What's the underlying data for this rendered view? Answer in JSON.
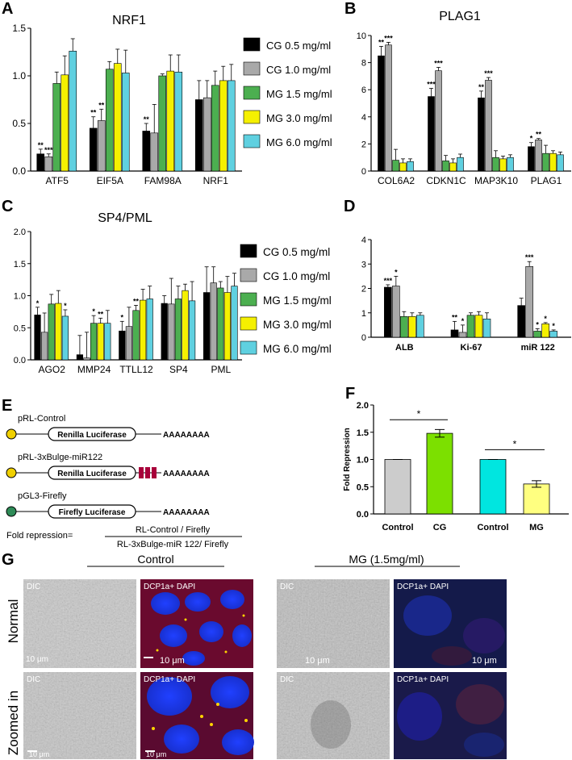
{
  "panel_letters": [
    "A",
    "B",
    "C",
    "D",
    "E",
    "F",
    "G"
  ],
  "legend_items": [
    "CG 0.5 mg/ml",
    "CG 1.0 mg/ml",
    "MG 1.5 mg/ml",
    "MG 3.0 mg/ml",
    "MG 6.0 mg/ml"
  ],
  "colors": {
    "cg05": "#000000",
    "cg10": "#a9a9a9",
    "mg15": "#4caf50",
    "mg30": "#f5f000",
    "mg60": "#5fd0e0",
    "f_control": "#cccccc",
    "f_cg": "#7ce000",
    "f_control2": "#00e6e0",
    "f_mg": "#ffff80",
    "sequence_red": "#a8003a",
    "circle_yellow": "#f0d000",
    "circle_green": "#2e8b57"
  },
  "panel_e": {
    "constructs": [
      {
        "name": "pRL-Control",
        "gene": "Renilla Luciferase",
        "tail": "AAAAAAAA",
        "marker": "circle-yellow"
      },
      {
        "name": "pRL-3xBulge-miR122",
        "gene": "Renilla Luciferase",
        "tail": "AAAAAAAA",
        "marker": "circle-yellow"
      },
      {
        "name": "pGL3-Firefly",
        "gene": "Firefly Luciferase",
        "tail": "AAAAAAAA",
        "marker": "circle-green"
      }
    ],
    "formula_label": "Fold repression=",
    "formula_numerator": "RL-Control / Firefly",
    "formula_denominator": "RL-3xBulge-miR 122/ Firefly"
  },
  "panel_g": {
    "headers": [
      "Control",
      "MG (1.5mg/ml)"
    ],
    "row_labels": [
      "Normal",
      "Zoomed in"
    ],
    "images": [
      [
        {
          "label": "DIC",
          "scale": "10 μm"
        },
        {
          "label": "DCP1a+ DAPI",
          "scale": "10 μm"
        },
        {
          "label": "DIC",
          "scale": "10 μm"
        },
        {
          "label": "DCP1a+ DAPI",
          "scale": "10 μm"
        }
      ],
      [
        {
          "label": "DIC",
          "scale": "10 μm"
        },
        {
          "label": "DCP1a+ DAPI",
          "scale": "10 μm"
        },
        {
          "label": "DIC",
          "scale": ""
        },
        {
          "label": "DCP1a+ DAPI",
          "scale": ""
        }
      ]
    ]
  },
  "chart_data": [
    {
      "id": "A",
      "type": "bar",
      "title": "NRF1",
      "ylabel": "",
      "ylim": [
        0,
        1.5
      ],
      "yticks": [
        "0.0",
        "0.5",
        "1.0",
        "1.5"
      ],
      "categories": [
        "ATF5",
        "EIF5A",
        "FAM98A",
        "NRF1"
      ],
      "series": [
        {
          "name": "CG 0.5 mg/ml",
          "values": [
            0.18,
            0.45,
            0.42,
            0.75
          ],
          "errors": [
            0.05,
            0.12,
            0.08,
            0.2
          ],
          "sig": [
            "**",
            "**",
            "**",
            ""
          ]
        },
        {
          "name": "CG 1.0 mg/ml",
          "values": [
            0.15,
            0.53,
            0.4,
            0.77
          ],
          "errors": [
            0.03,
            0.12,
            0.3,
            0.18
          ],
          "sig": [
            "***",
            "**",
            "",
            ""
          ]
        },
        {
          "name": "MG 1.5 mg/ml",
          "values": [
            0.92,
            1.07,
            1.0,
            0.9
          ],
          "errors": [
            0.12,
            0.08,
            0.02,
            0.15
          ],
          "sig": [
            "",
            "",
            "",
            ""
          ]
        },
        {
          "name": "MG 3.0 mg/ml",
          "values": [
            1.01,
            1.13,
            1.05,
            0.95
          ],
          "errors": [
            0.2,
            0.15,
            0.17,
            0.15
          ],
          "sig": [
            "",
            "",
            "",
            ""
          ]
        },
        {
          "name": "MG 6.0 mg/ml",
          "values": [
            1.26,
            1.03,
            1.04,
            0.95
          ],
          "errors": [
            0.13,
            0.24,
            0.18,
            0.17
          ],
          "sig": [
            "",
            "",
            "",
            ""
          ]
        }
      ]
    },
    {
      "id": "B",
      "type": "bar",
      "title": "PLAG1",
      "ylabel": "",
      "ylim": [
        0,
        10
      ],
      "yticks": [
        "0",
        "2",
        "4",
        "6",
        "8",
        "10"
      ],
      "categories": [
        "COL6A2",
        "CDKN1C",
        "MAP3K10",
        "PLAG1"
      ],
      "series": [
        {
          "name": "CG 0.5 mg/ml",
          "values": [
            8.5,
            5.5,
            5.4,
            1.8
          ],
          "errors": [
            0.7,
            0.6,
            0.5,
            0.3
          ],
          "sig": [
            "**",
            "***",
            "**",
            "*"
          ]
        },
        {
          "name": "CG 1.0 mg/ml",
          "values": [
            9.3,
            7.4,
            6.7,
            2.3
          ],
          "errors": [
            0.2,
            0.25,
            0.2,
            0.1
          ],
          "sig": [
            "***",
            "***",
            "***",
            "**"
          ]
        },
        {
          "name": "MG 1.5 mg/ml",
          "values": [
            0.8,
            0.75,
            1.0,
            1.3
          ],
          "errors": [
            0.8,
            0.4,
            0.5,
            0.6
          ],
          "sig": [
            "",
            "",
            "",
            ""
          ]
        },
        {
          "name": "MG 3.0 mg/ml",
          "values": [
            0.6,
            0.6,
            0.9,
            1.3
          ],
          "errors": [
            0.3,
            0.3,
            0.2,
            0.2
          ],
          "sig": [
            "",
            "",
            "",
            ""
          ]
        },
        {
          "name": "MG 6.0 mg/ml",
          "values": [
            0.7,
            1.0,
            1.0,
            1.2
          ],
          "errors": [
            0.2,
            0.25,
            0.2,
            0.2
          ],
          "sig": [
            "",
            "",
            "",
            ""
          ]
        }
      ]
    },
    {
      "id": "C",
      "type": "bar",
      "title": "SP4/PML",
      "ylabel": "",
      "ylim": [
        0,
        2.0
      ],
      "yticks": [
        "0.0",
        "0.5",
        "1.0",
        "1.5",
        "2.0"
      ],
      "categories": [
        "AGO2",
        "MMP24",
        "TTLL12",
        "SP4",
        "PML"
      ],
      "series": [
        {
          "name": "CG 0.5 mg/ml",
          "values": [
            0.7,
            0.08,
            0.45,
            0.88,
            1.05
          ],
          "errors": [
            0.12,
            0.3,
            0.15,
            0.12,
            0.4
          ],
          "sig": [
            "*",
            "",
            "*",
            "",
            ""
          ]
        },
        {
          "name": "CG 1.0 mg/ml",
          "values": [
            0.43,
            0.03,
            0.52,
            0.87,
            1.2
          ],
          "errors": [
            0.3,
            0.4,
            0.3,
            0.4,
            0.25
          ],
          "sig": [
            "",
            "",
            "",
            "",
            ""
          ]
        },
        {
          "name": "MG 1.5 mg/ml",
          "values": [
            0.87,
            0.57,
            0.77,
            0.95,
            1.12
          ],
          "errors": [
            0.15,
            0.12,
            0.08,
            0.2,
            0.1
          ],
          "sig": [
            "",
            "*",
            "**",
            "",
            ""
          ]
        },
        {
          "name": "MG 3.0 mg/ml",
          "values": [
            0.88,
            0.57,
            0.93,
            1.08,
            1.05
          ],
          "errors": [
            0.2,
            0.08,
            0.17,
            0.1,
            0.25
          ],
          "sig": [
            "",
            "**",
            "",
            "",
            ""
          ]
        },
        {
          "name": "MG 6.0 mg/ml",
          "values": [
            0.68,
            0.57,
            0.95,
            0.92,
            1.15
          ],
          "errors": [
            0.1,
            0.2,
            0.2,
            0.3,
            0.2
          ],
          "sig": [
            "*",
            "",
            "",
            "",
            ""
          ]
        }
      ]
    },
    {
      "id": "D",
      "type": "bar",
      "title": "",
      "ylabel": "",
      "ylim": [
        0,
        4
      ],
      "yticks": [
        "0",
        "1",
        "2",
        "3",
        "4"
      ],
      "categories": [
        "ALB",
        "Ki-67",
        "miR 122"
      ],
      "series": [
        {
          "name": "CG 0.5 mg/ml",
          "values": [
            2.05,
            0.3,
            1.3
          ],
          "errors": [
            0.1,
            0.35,
            0.3
          ],
          "sig": [
            "***",
            "**",
            ""
          ]
        },
        {
          "name": "CG 1.0 mg/ml",
          "values": [
            2.1,
            0.2,
            2.9
          ],
          "errors": [
            0.4,
            0.3,
            0.2
          ],
          "sig": [
            "*",
            "*",
            "***"
          ]
        },
        {
          "name": "MG 1.5 mg/ml",
          "values": [
            0.85,
            0.9,
            0.25
          ],
          "errors": [
            0.2,
            0.1,
            0.1
          ],
          "sig": [
            "",
            "",
            "*"
          ]
        },
        {
          "name": "MG 3.0 mg/ml",
          "values": [
            0.85,
            0.9,
            0.55
          ],
          "errors": [
            0.15,
            0.15,
            0.05
          ],
          "sig": [
            "",
            "",
            "*"
          ]
        },
        {
          "name": "MG 6.0 mg/ml",
          "values": [
            0.9,
            0.75,
            0.25
          ],
          "errors": [
            0.1,
            0.25,
            0.05
          ],
          "sig": [
            "",
            "",
            "*"
          ]
        }
      ]
    },
    {
      "id": "F",
      "type": "bar",
      "title": "",
      "ylabel": "Fold Repression",
      "ylim": [
        0,
        2.0
      ],
      "yticks": [
        "0.0",
        "0.5",
        "1.0",
        "1.5",
        "2.0"
      ],
      "categories": [
        "Control",
        "CG",
        "Control",
        "MG"
      ],
      "values": [
        1.0,
        1.48,
        1.0,
        0.55
      ],
      "errors": [
        0.0,
        0.07,
        0.0,
        0.06
      ],
      "comparisons": [
        {
          "from": 0,
          "to": 1,
          "label": "*"
        },
        {
          "from": 2,
          "to": 3,
          "label": "*"
        }
      ]
    }
  ]
}
